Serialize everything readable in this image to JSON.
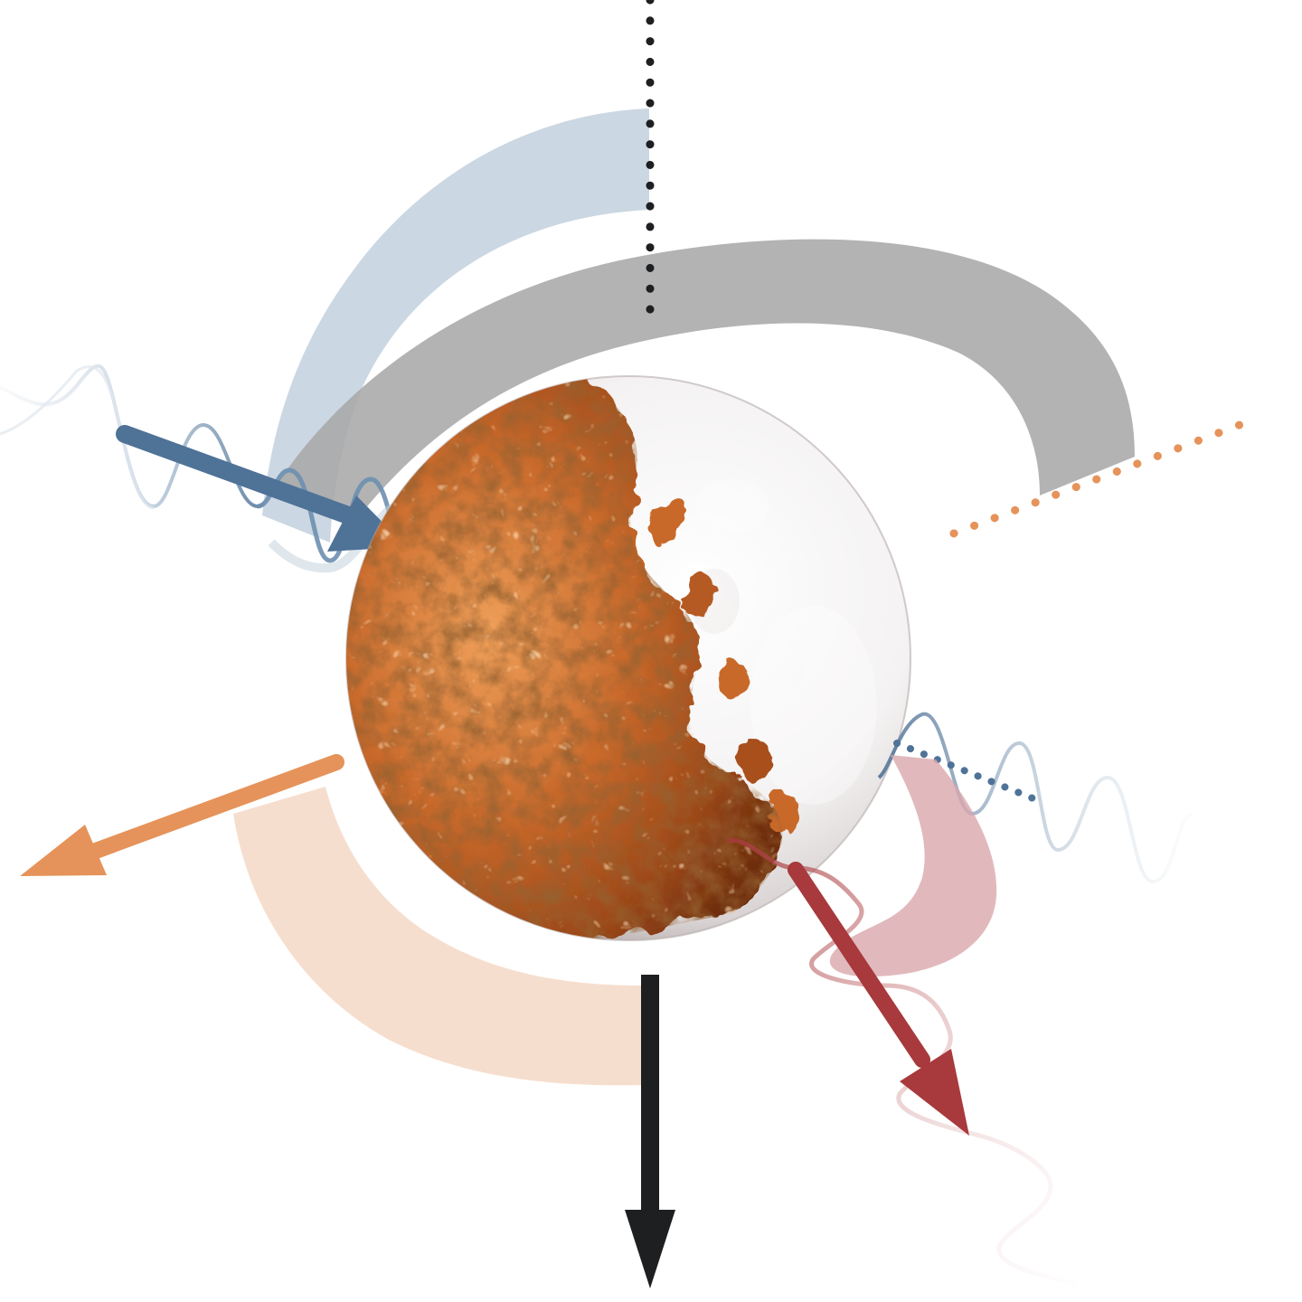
{
  "diagram": {
    "colors": {
      "background": "#ffffff",
      "incident_blue": "#4f7297",
      "incident_blue_light": "#c5d3df",
      "scattered_red": "#a8393c",
      "scattered_red_light": "#dcaeb3",
      "emitted_orange": "#e5935a",
      "emitted_orange_light": "#f5dccb",
      "force_black": "#1d1f21",
      "band_gray": "#b1b1b1",
      "copper": "#c8692b",
      "copper_dark": "#6e2d0c",
      "glass": "#f2f0f0"
    },
    "icons": {
      "particle": "half-copper-half-glass-sphere-icon",
      "incident_beam": "blue-wave-arrow-icon",
      "scattered_beam": "red-wave-arrow-icon",
      "emitted_beam": "orange-arrow-icon",
      "force": "black-down-arrow-icon"
    }
  }
}
